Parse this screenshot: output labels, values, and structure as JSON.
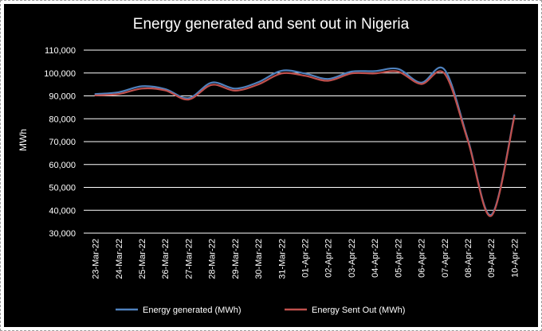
{
  "chart_data": {
    "type": "line",
    "title": "Energy generated and sent out in Nigeria",
    "xlabel": "",
    "ylabel": "MWh",
    "ylim": [
      30000,
      110000
    ],
    "yticks": [
      30000,
      40000,
      50000,
      60000,
      70000,
      80000,
      90000,
      100000,
      110000
    ],
    "ytick_labels": [
      "30,000",
      "40,000",
      "50,000",
      "60,000",
      "70,000",
      "80,000",
      "90,000",
      "100,000",
      "110,000"
    ],
    "categories": [
      "23-Mar-22",
      "24-Mar-22",
      "25-Mar-22",
      "26-Mar-22",
      "27-Mar-22",
      "28-Mar-22",
      "29-Mar-22",
      "30-Mar-22",
      "31-Mar-22",
      "01-Apr-22",
      "02-Apr-22",
      "03-Apr-22",
      "04-Apr-22",
      "05-Apr-22",
      "06-Apr-22",
      "07-Apr-22",
      "08-Apr-22",
      "09-Apr-22",
      "10-Apr-22"
    ],
    "grid": true,
    "legend_position": "bottom",
    "background": "#000000",
    "text_color": "#ffffff",
    "series": [
      {
        "name": "Energy generated (MWh)",
        "color": "#4f81bd",
        "values": [
          90800,
          91600,
          94200,
          93000,
          89000,
          95800,
          93200,
          96000,
          101000,
          99800,
          97400,
          100600,
          100800,
          101800,
          95800,
          101400,
          71000,
          38000,
          81500
        ]
      },
      {
        "name": "Energy Sent Out (MWh)",
        "color": "#c0504d",
        "values": [
          90200,
          90800,
          93200,
          92400,
          88400,
          94800,
          92300,
          95000,
          99800,
          98800,
          96600,
          99800,
          99800,
          100600,
          95200,
          99700,
          70400,
          37500,
          81000
        ]
      }
    ]
  }
}
